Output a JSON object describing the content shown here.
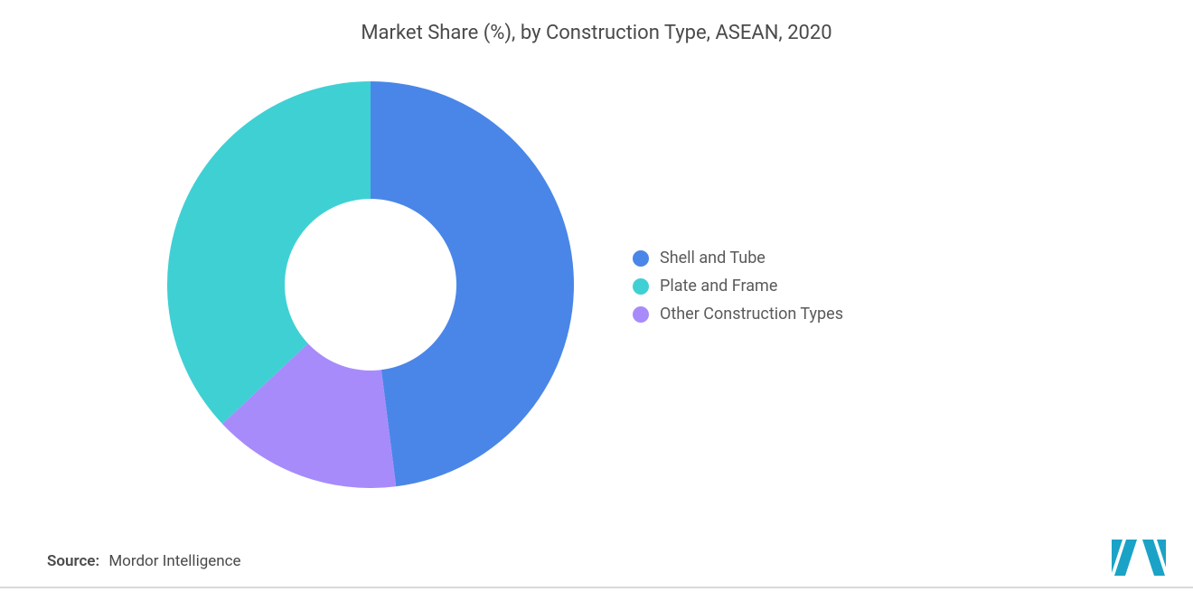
{
  "chart": {
    "type": "donut",
    "title": "Market Share (%), by Construction Type, ASEAN, 2020",
    "title_fontsize": 22,
    "title_color": "#4a4a4a",
    "background_color": "#ffffff",
    "outer_radius": 225,
    "inner_radius": 95,
    "center_fill": "#ffffff",
    "start_angle_deg": -90,
    "slices": [
      {
        "label": "Shell and Tube",
        "value": 48,
        "color": "#4a86e8"
      },
      {
        "label": "Other Construction Types",
        "value": 15,
        "color": "#a78bfa"
      },
      {
        "label": "Plate and Frame",
        "value": 37,
        "color": "#3fd0d4"
      }
    ],
    "legend_order": [
      0,
      2,
      1
    ],
    "legend": {
      "fontsize": 18,
      "text_color": "#5a5a5a",
      "swatch_radius": 9
    }
  },
  "source": {
    "label": "Source:",
    "text": "Mordor Intelligence",
    "fontsize": 17,
    "color": "#4a4a4a"
  },
  "brand": {
    "name": "mordor-intelligence-logo",
    "bar_color": "#1aa3c6",
    "gap": 4
  }
}
